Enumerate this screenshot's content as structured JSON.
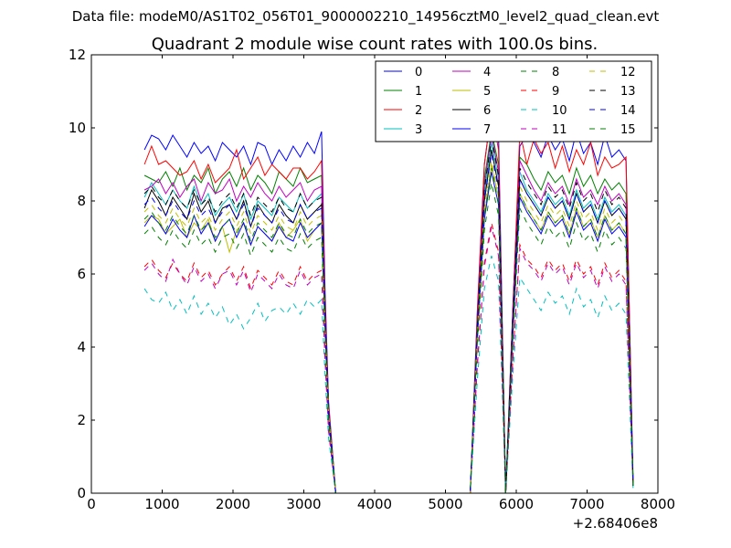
{
  "chart_data": {
    "type": "line",
    "suptitle": "Data file: modeM0/AS1T02_056T01_9000002210_14956cztM0_level2_quad_clean.evt",
    "title": "Quadrant 2 module wise count rates with 100.0s bins.",
    "xlabel": "",
    "ylabel": "",
    "x_offset_label": "+2.68406e8",
    "xlim": [
      0,
      8000
    ],
    "ylim": [
      0,
      12
    ],
    "xticks": [
      0,
      1000,
      2000,
      3000,
      4000,
      5000,
      6000,
      7000,
      8000
    ],
    "yticks": [
      0,
      2,
      4,
      6,
      8,
      10,
      12
    ],
    "grid": false,
    "legend_position": "top-right",
    "x": [
      750,
      850,
      950,
      1050,
      1150,
      1250,
      1350,
      1450,
      1550,
      1650,
      1750,
      1850,
      1950,
      2050,
      2150,
      2250,
      2350,
      2450,
      2550,
      2650,
      2750,
      2850,
      2950,
      3050,
      3150,
      3250,
      3300,
      3350,
      3450,
      5350,
      5450,
      5550,
      5650,
      5750,
      5850,
      5950,
      6050,
      6150,
      6250,
      6350,
      6450,
      6550,
      6650,
      6750,
      6850,
      6950,
      7050,
      7150,
      7250,
      7350,
      7450,
      7550,
      7650
    ],
    "series": [
      {
        "name": "0",
        "color": "#0000ff",
        "dash": "solid",
        "values": [
          9.4,
          9.8,
          9.7,
          9.4,
          9.8,
          9.5,
          9.2,
          9.6,
          9.3,
          9.5,
          9.1,
          9.6,
          9.4,
          9.2,
          9.5,
          9.0,
          9.6,
          9.5,
          9.0,
          9.4,
          9.1,
          9.5,
          9.2,
          9.6,
          9.3,
          9.9,
          5.5,
          2.5,
          0.0,
          0.0,
          5.0,
          9.0,
          10.5,
          9.8,
          0.0,
          5.0,
          9.5,
          9.8,
          9.6,
          9.2,
          9.8,
          9.4,
          9.7,
          9.1,
          9.9,
          9.3,
          9.6,
          9.0,
          9.8,
          9.2,
          9.4,
          9.1,
          0.3
        ]
      },
      {
        "name": "1",
        "color": "#008000",
        "dash": "solid",
        "values": [
          8.7,
          8.6,
          8.5,
          8.8,
          8.4,
          8.9,
          8.3,
          8.7,
          8.5,
          8.9,
          8.2,
          8.6,
          8.8,
          8.4,
          8.9,
          8.3,
          8.7,
          8.5,
          8.2,
          8.8,
          8.6,
          8.4,
          8.9,
          8.5,
          8.6,
          8.7,
          5.0,
          2.3,
          0.0,
          0.0,
          4.7,
          8.6,
          9.9,
          9.0,
          0.0,
          4.8,
          9.2,
          9.0,
          8.6,
          8.3,
          8.8,
          8.5,
          8.7,
          8.2,
          8.9,
          8.4,
          8.7,
          8.2,
          8.6,
          8.3,
          8.5,
          8.2,
          0.2
        ]
      },
      {
        "name": "2",
        "color": "#ff0000",
        "dash": "solid",
        "values": [
          9.0,
          9.5,
          9.0,
          9.1,
          8.9,
          8.7,
          8.8,
          9.1,
          8.6,
          9.0,
          8.5,
          8.7,
          8.9,
          9.4,
          8.6,
          8.9,
          9.2,
          8.7,
          9.0,
          8.8,
          8.6,
          8.9,
          8.9,
          8.6,
          8.8,
          9.1,
          5.2,
          2.4,
          0.0,
          0.0,
          4.9,
          9.0,
          10.5,
          9.4,
          0.0,
          4.9,
          9.9,
          9.0,
          9.7,
          9.3,
          9.6,
          8.9,
          9.5,
          8.8,
          9.4,
          9.0,
          9.6,
          8.7,
          9.2,
          8.9,
          9.0,
          9.2,
          0.2
        ]
      },
      {
        "name": "3",
        "color": "#00bfbf",
        "dash": "solid",
        "values": [
          8.1,
          8.5,
          8.2,
          7.9,
          8.3,
          8.0,
          7.8,
          8.4,
          7.9,
          8.2,
          7.6,
          7.9,
          8.1,
          7.7,
          8.2,
          7.5,
          8.0,
          7.8,
          7.6,
          8.1,
          7.9,
          7.7,
          8.2,
          7.8,
          8.0,
          8.2,
          4.8,
          2.2,
          0.0,
          0.0,
          4.5,
          8.2,
          9.6,
          8.6,
          0.0,
          4.6,
          8.8,
          8.3,
          8.0,
          7.7,
          8.2,
          7.9,
          8.1,
          7.6,
          8.3,
          7.8,
          8.0,
          7.5,
          8.1,
          7.7,
          7.9,
          7.6,
          0.2
        ]
      },
      {
        "name": "4",
        "color": "#bf00bf",
        "dash": "solid",
        "values": [
          8.3,
          8.4,
          8.6,
          8.2,
          8.5,
          8.1,
          8.4,
          8.6,
          8.0,
          8.5,
          8.2,
          8.3,
          8.6,
          8.0,
          8.4,
          8.1,
          8.5,
          8.2,
          8.0,
          8.4,
          8.1,
          8.3,
          8.5,
          8.0,
          8.3,
          8.4,
          4.9,
          2.2,
          0.0,
          0.0,
          4.6,
          8.4,
          9.8,
          8.8,
          0.0,
          4.7,
          9.1,
          8.7,
          8.3,
          8.0,
          8.5,
          8.2,
          8.4,
          7.9,
          8.6,
          8.1,
          8.3,
          7.9,
          8.4,
          8.0,
          8.2,
          7.9,
          0.2
        ]
      },
      {
        "name": "5",
        "color": "#bfbf00",
        "dash": "solid",
        "values": [
          7.4,
          7.6,
          7.5,
          7.1,
          7.3,
          7.5,
          7.0,
          7.4,
          7.2,
          7.5,
          6.9,
          7.3,
          6.6,
          7.2,
          7.4,
          6.8,
          7.3,
          7.1,
          6.9,
          7.4,
          7.0,
          7.2,
          7.5,
          6.9,
          7.2,
          7.4,
          4.4,
          2.0,
          0.0,
          0.0,
          4.2,
          7.6,
          9.0,
          8.1,
          0.0,
          4.3,
          8.2,
          7.8,
          7.5,
          7.2,
          7.7,
          7.4,
          7.6,
          7.1,
          7.8,
          7.3,
          7.5,
          7.0,
          7.6,
          7.2,
          7.4,
          7.1,
          0.2
        ]
      },
      {
        "name": "6",
        "color": "#000000",
        "dash": "solid",
        "values": [
          7.8,
          8.3,
          8.0,
          7.6,
          8.1,
          7.8,
          7.5,
          8.2,
          7.7,
          8.0,
          7.4,
          7.8,
          7.9,
          7.5,
          8.0,
          7.3,
          7.9,
          7.6,
          7.4,
          7.9,
          7.6,
          7.4,
          7.9,
          7.5,
          7.7,
          7.9,
          4.7,
          2.1,
          0.0,
          0.0,
          4.4,
          8.0,
          9.4,
          8.4,
          0.0,
          4.5,
          8.6,
          8.2,
          7.9,
          7.6,
          8.1,
          7.8,
          8.0,
          7.5,
          8.2,
          7.7,
          7.9,
          7.4,
          8.0,
          7.6,
          7.8,
          7.5,
          0.2
        ]
      },
      {
        "name": "7",
        "color": "#0000ff",
        "dash": "solid",
        "values": [
          7.3,
          7.6,
          7.4,
          7.1,
          7.5,
          7.2,
          7.0,
          7.6,
          7.1,
          7.4,
          6.9,
          7.3,
          7.5,
          7.0,
          7.4,
          6.8,
          7.3,
          7.1,
          6.9,
          7.3,
          7.0,
          6.9,
          7.4,
          7.0,
          7.2,
          7.4,
          4.4,
          2.0,
          0.0,
          0.0,
          4.2,
          7.5,
          8.8,
          7.9,
          0.0,
          4.3,
          8.1,
          7.7,
          7.4,
          7.1,
          7.6,
          7.3,
          7.5,
          7.0,
          7.7,
          7.2,
          7.4,
          6.9,
          7.5,
          7.1,
          7.3,
          7.0,
          0.2
        ]
      },
      {
        "name": "8",
        "color": "#008000",
        "dash": "dashed",
        "values": [
          7.1,
          7.3,
          7.0,
          6.8,
          7.2,
          6.9,
          6.7,
          7.2,
          6.8,
          7.0,
          6.6,
          7.0,
          7.1,
          6.7,
          7.1,
          6.5,
          7.0,
          6.8,
          6.6,
          7.0,
          6.7,
          6.6,
          7.1,
          6.7,
          6.9,
          7.0,
          4.2,
          1.9,
          0.0,
          0.0,
          4.0,
          7.2,
          8.5,
          7.6,
          0.0,
          4.1,
          7.8,
          7.4,
          7.1,
          6.8,
          7.3,
          7.0,
          7.2,
          6.7,
          7.4,
          6.9,
          7.1,
          6.6,
          7.2,
          6.8,
          7.0,
          6.7,
          0.2
        ]
      },
      {
        "name": "9",
        "color": "#ff0000",
        "dash": "dashed",
        "values": [
          6.2,
          6.4,
          6.1,
          5.9,
          6.3,
          6.0,
          5.8,
          6.3,
          5.9,
          6.1,
          5.7,
          6.0,
          6.2,
          5.8,
          6.2,
          5.6,
          6.1,
          5.9,
          5.7,
          6.1,
          5.8,
          5.7,
          6.2,
          5.8,
          6.0,
          6.1,
          3.7,
          1.7,
          0.0,
          0.0,
          3.5,
          6.3,
          7.4,
          6.6,
          0.0,
          3.6,
          6.8,
          6.4,
          6.2,
          5.9,
          6.4,
          6.1,
          6.3,
          5.8,
          6.4,
          6.0,
          6.2,
          5.7,
          6.3,
          5.9,
          6.1,
          5.8,
          0.2
        ]
      },
      {
        "name": "10",
        "color": "#00bfbf",
        "dash": "dashed",
        "values": [
          5.6,
          5.3,
          5.2,
          5.5,
          5.0,
          5.3,
          4.9,
          5.4,
          4.9,
          5.2,
          4.8,
          5.1,
          4.6,
          4.9,
          4.5,
          4.8,
          5.2,
          4.7,
          5.0,
          5.1,
          4.9,
          5.2,
          4.9,
          5.3,
          5.1,
          5.3,
          3.2,
          1.5,
          0.0,
          0.0,
          3.1,
          5.6,
          6.5,
          5.8,
          0.0,
          3.2,
          5.9,
          5.6,
          5.3,
          5.0,
          5.5,
          5.2,
          5.4,
          4.9,
          5.6,
          5.1,
          5.3,
          4.8,
          5.4,
          5.0,
          5.2,
          4.9,
          0.1
        ]
      },
      {
        "name": "11",
        "color": "#bf00bf",
        "dash": "dashed",
        "values": [
          6.1,
          6.3,
          6.0,
          5.8,
          6.4,
          6.0,
          5.7,
          6.2,
          5.8,
          6.0,
          5.6,
          6.0,
          6.1,
          5.7,
          6.1,
          5.5,
          6.0,
          5.8,
          5.6,
          6.0,
          5.7,
          5.6,
          6.1,
          5.7,
          5.9,
          6.0,
          3.6,
          1.7,
          0.0,
          0.0,
          3.5,
          6.2,
          7.3,
          6.5,
          0.0,
          3.6,
          6.7,
          6.3,
          6.1,
          5.8,
          6.3,
          6.0,
          6.2,
          5.7,
          6.3,
          5.9,
          6.1,
          5.6,
          6.2,
          5.8,
          6.0,
          5.7,
          0.2
        ]
      },
      {
        "name": "12",
        "color": "#bfbf00",
        "dash": "dashed",
        "values": [
          7.7,
          7.9,
          7.6,
          7.4,
          7.8,
          7.5,
          7.3,
          7.8,
          7.4,
          7.6,
          7.2,
          7.5,
          7.7,
          7.3,
          7.7,
          7.1,
          7.6,
          7.4,
          7.2,
          7.6,
          7.3,
          7.2,
          7.7,
          7.3,
          7.5,
          7.6,
          4.5,
          2.1,
          0.0,
          0.0,
          4.3,
          7.8,
          9.1,
          8.1,
          0.0,
          4.4,
          8.4,
          8.0,
          7.7,
          7.4,
          7.9,
          7.6,
          7.8,
          7.3,
          8.0,
          7.5,
          7.7,
          7.2,
          7.8,
          7.4,
          7.6,
          7.3,
          0.2
        ]
      },
      {
        "name": "13",
        "color": "#000000",
        "dash": "dashed",
        "values": [
          8.2,
          8.4,
          8.1,
          7.9,
          8.3,
          8.0,
          7.8,
          8.3,
          7.9,
          8.1,
          7.7,
          8.0,
          8.2,
          7.8,
          8.2,
          7.6,
          8.1,
          7.9,
          7.7,
          8.1,
          7.8,
          7.7,
          8.2,
          7.8,
          8.0,
          8.1,
          4.8,
          2.2,
          0.0,
          0.0,
          4.6,
          8.3,
          9.7,
          8.7,
          0.0,
          4.7,
          8.9,
          8.5,
          8.2,
          7.9,
          8.4,
          8.1,
          8.3,
          7.8,
          8.5,
          8.0,
          8.2,
          7.7,
          8.3,
          7.9,
          8.1,
          7.8,
          0.2
        ]
      },
      {
        "name": "14",
        "color": "#0000ff",
        "dash": "dashed",
        "values": [
          7.9,
          8.1,
          7.8,
          7.6,
          8.0,
          7.7,
          7.5,
          8.0,
          7.6,
          7.8,
          7.4,
          7.7,
          7.9,
          7.5,
          7.9,
          7.3,
          7.8,
          7.6,
          7.4,
          7.8,
          7.5,
          7.4,
          7.9,
          7.5,
          7.7,
          7.8,
          4.6,
          2.1,
          0.0,
          0.0,
          4.4,
          8.0,
          9.3,
          8.3,
          0.0,
          4.5,
          8.6,
          8.2,
          7.9,
          7.6,
          8.1,
          7.8,
          8.0,
          7.5,
          8.2,
          7.7,
          7.9,
          7.4,
          8.0,
          7.6,
          7.8,
          7.5,
          0.2
        ]
      },
      {
        "name": "15",
        "color": "#008000",
        "dash": "dashed",
        "values": [
          7.5,
          7.7,
          7.4,
          7.2,
          7.6,
          7.3,
          7.1,
          7.6,
          7.2,
          7.4,
          7.0,
          7.3,
          7.5,
          7.1,
          7.5,
          6.9,
          7.4,
          7.2,
          7.0,
          7.4,
          7.1,
          7.0,
          7.5,
          7.1,
          7.3,
          7.4,
          4.4,
          2.0,
          0.0,
          0.0,
          4.2,
          7.6,
          8.9,
          7.9,
          0.0,
          4.3,
          8.2,
          7.8,
          7.5,
          7.2,
          7.7,
          7.4,
          7.6,
          7.1,
          7.8,
          7.3,
          7.5,
          7.0,
          7.6,
          7.2,
          7.4,
          7.1,
          0.2
        ]
      }
    ]
  }
}
